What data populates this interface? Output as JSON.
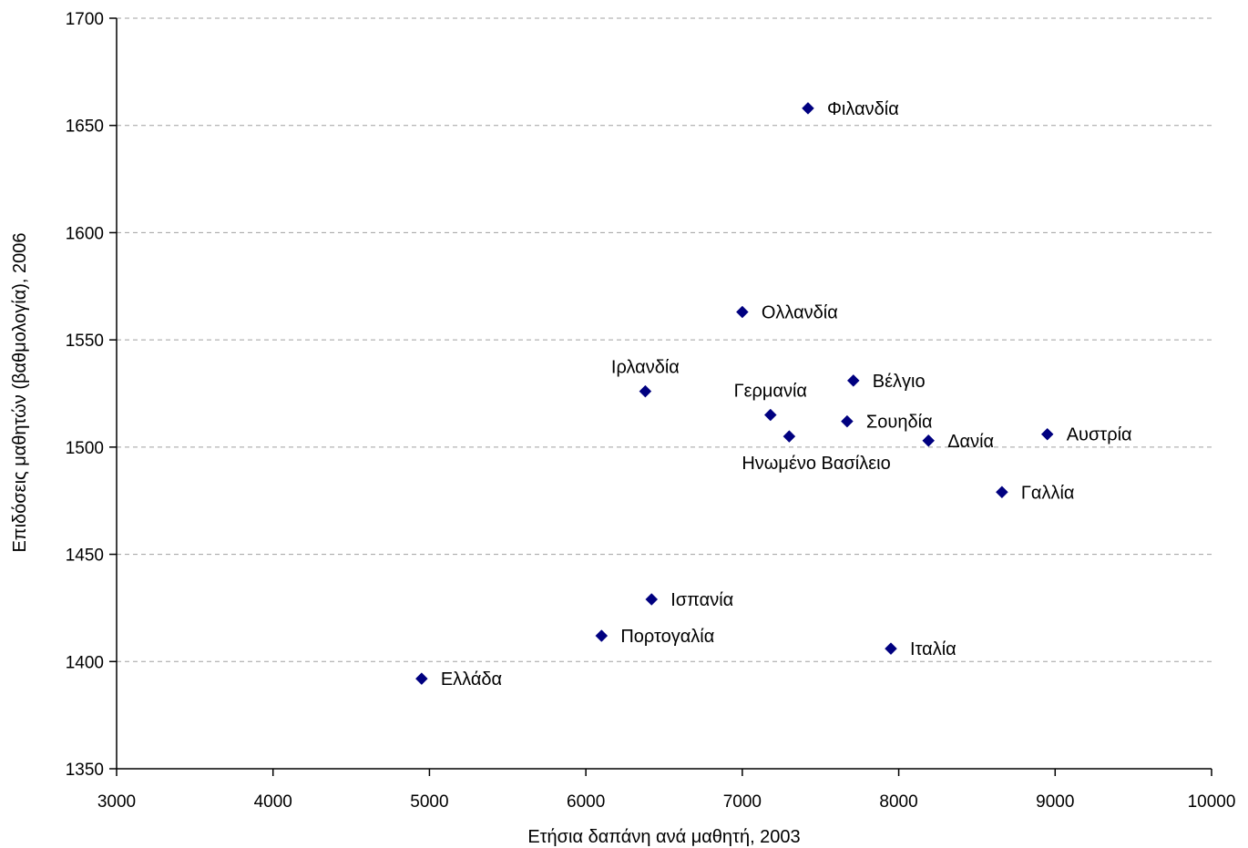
{
  "chart_data": {
    "type": "scatter",
    "title": "",
    "xlabel": "Ετήσια δαπάνη ανά μαθητή, 2003",
    "ylabel": "Επιδόσεις μαθητών (βαθμολογία), 2006",
    "xlim": [
      3000,
      10000
    ],
    "ylim": [
      1350,
      1700
    ],
    "xticks": [
      3000,
      4000,
      5000,
      6000,
      7000,
      8000,
      9000,
      10000
    ],
    "yticks": [
      1350,
      1400,
      1450,
      1500,
      1550,
      1600,
      1650,
      1700
    ],
    "grid": "horizontal-dashed",
    "legend": "none",
    "marker_color": "#000080",
    "points": [
      {
        "label": "Φιλανδία",
        "x": 7420,
        "y": 1658,
        "label_pos": "right"
      },
      {
        "label": "Ολλανδία",
        "x": 7000,
        "y": 1563,
        "label_pos": "right"
      },
      {
        "label": "Ιρλανδία",
        "x": 6380,
        "y": 1526,
        "label_pos": "above"
      },
      {
        "label": "Βέλγιο",
        "x": 7710,
        "y": 1531,
        "label_pos": "right"
      },
      {
        "label": "Γερμανία",
        "x": 7180,
        "y": 1515,
        "label_pos": "above"
      },
      {
        "label": "Σουηδία",
        "x": 7670,
        "y": 1512,
        "label_pos": "right"
      },
      {
        "label": "Ηνωμένο Βασίλειο",
        "x": 7300,
        "y": 1505,
        "label_pos": "below"
      },
      {
        "label": "Δανία",
        "x": 8190,
        "y": 1503,
        "label_pos": "right"
      },
      {
        "label": "Αυστρία",
        "x": 8950,
        "y": 1506,
        "label_pos": "right"
      },
      {
        "label": "Γαλλία",
        "x": 8660,
        "y": 1479,
        "label_pos": "right"
      },
      {
        "label": "Ισπανία",
        "x": 6420,
        "y": 1429,
        "label_pos": "right"
      },
      {
        "label": "Πορτογαλία",
        "x": 6100,
        "y": 1412,
        "label_pos": "right"
      },
      {
        "label": "Ιταλία",
        "x": 7950,
        "y": 1406,
        "label_pos": "right"
      },
      {
        "label": "Ελλάδα",
        "x": 4950,
        "y": 1392,
        "label_pos": "right"
      }
    ]
  }
}
